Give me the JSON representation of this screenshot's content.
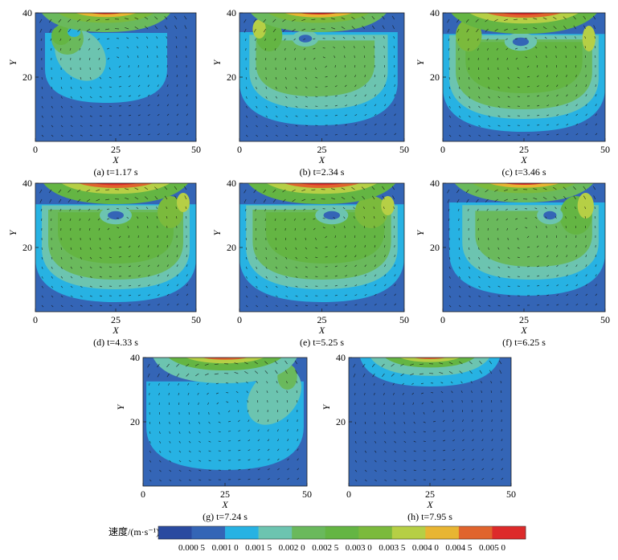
{
  "chart_data": [
    {
      "type": "heatmap+vector",
      "panel": "a",
      "caption": "(a) t=1.17 s",
      "time_s": 1.17,
      "xlabel": "X",
      "ylabel": "Y",
      "xlim": [
        0,
        50
      ],
      "ylim": [
        0,
        40
      ],
      "xticks": [
        0,
        25,
        50
      ],
      "yticks": [
        20,
        40
      ],
      "regions": [
        {
          "value": 0.0005,
          "shape": "base",
          "cx": 25,
          "cy": 20
        },
        {
          "value": 0.001,
          "shape": "bowl",
          "cx": 22,
          "cy": 27,
          "rx": 19,
          "ry": 15
        },
        {
          "value": 0.0015,
          "shape": "plume",
          "cx": 14,
          "cy": 27,
          "rx": 7,
          "ry": 9,
          "rot": -42
        },
        {
          "value": 0.002,
          "shape": "blob",
          "cx": 10,
          "cy": 32,
          "rx": 5,
          "ry": 5
        },
        {
          "value": 0.0025,
          "shape": "blob",
          "cx": 8,
          "cy": 33,
          "rx": 3,
          "ry": 3
        },
        {
          "value": 0.001,
          "shape": "core",
          "cx": 12,
          "cy": 34,
          "rx": 2,
          "ry": 1.5
        },
        {
          "value": 0.002,
          "shape": "lid",
          "cx": 22,
          "cy": 38,
          "rx": 22,
          "ry": 4
        },
        {
          "value": 0.003,
          "shape": "lid",
          "cx": 22,
          "cy": 39.3,
          "rx": 19,
          "ry": 2.4
        },
        {
          "value": 0.004,
          "shape": "lid",
          "cx": 22,
          "cy": 39.9,
          "rx": 15,
          "ry": 1.2
        },
        {
          "value": 0.005,
          "shape": "lid",
          "cx": 22,
          "cy": 40.2,
          "rx": 11,
          "ry": 0.6
        }
      ]
    },
    {
      "type": "heatmap+vector",
      "panel": "b",
      "caption": "(b) t=2.34 s",
      "time_s": 2.34,
      "xlabel": "X",
      "ylabel": "Y",
      "xlim": [
        0,
        50
      ],
      "ylim": [
        0,
        40
      ],
      "xticks": [
        0,
        25,
        50
      ],
      "yticks": [
        20,
        40
      ],
      "regions": [
        {
          "value": 0.0005,
          "shape": "base",
          "cx": 25,
          "cy": 20
        },
        {
          "value": 0.001,
          "shape": "bowl",
          "cx": 24,
          "cy": 25,
          "rx": 24,
          "ry": 20
        },
        {
          "value": 0.0015,
          "shape": "bowl",
          "cx": 24,
          "cy": 26,
          "rx": 21,
          "ry": 16
        },
        {
          "value": 0.002,
          "shape": "bowl",
          "cx": 23,
          "cy": 26,
          "rx": 18,
          "ry": 12
        },
        {
          "value": 0.0025,
          "shape": "blob",
          "cx": 9,
          "cy": 33,
          "rx": 4,
          "ry": 5
        },
        {
          "value": 0.0035,
          "shape": "blob",
          "cx": 6,
          "cy": 35,
          "rx": 2,
          "ry": 3
        },
        {
          "value": 0.0015,
          "shape": "core",
          "cx": 20,
          "cy": 32,
          "rx": 4,
          "ry": 2.5
        },
        {
          "value": 0.0005,
          "shape": "core",
          "cx": 20,
          "cy": 32,
          "rx": 2,
          "ry": 1.2
        },
        {
          "value": 0.002,
          "shape": "lid",
          "cx": 24,
          "cy": 38,
          "rx": 23,
          "ry": 4
        },
        {
          "value": 0.003,
          "shape": "lid",
          "cx": 24,
          "cy": 39.3,
          "rx": 20,
          "ry": 2.4
        },
        {
          "value": 0.004,
          "shape": "lid",
          "cx": 24,
          "cy": 39.9,
          "rx": 17,
          "ry": 1.3
        },
        {
          "value": 0.005,
          "shape": "lid",
          "cx": 24,
          "cy": 40.2,
          "rx": 13,
          "ry": 0.7
        }
      ]
    },
    {
      "type": "heatmap+vector",
      "panel": "c",
      "caption": "(c) t=3.46 s",
      "time_s": 3.46,
      "xlabel": "X",
      "ylabel": "Y",
      "xlim": [
        0,
        50
      ],
      "ylim": [
        0,
        40
      ],
      "xticks": [
        0,
        25,
        50
      ],
      "yticks": [
        20,
        40
      ],
      "regions": [
        {
          "value": 0.0005,
          "shape": "base",
          "cx": 25,
          "cy": 20
        },
        {
          "value": 0.001,
          "shape": "bowl",
          "cx": 25,
          "cy": 24,
          "rx": 25,
          "ry": 21
        },
        {
          "value": 0.0015,
          "shape": "bowl",
          "cx": 25,
          "cy": 25,
          "rx": 23,
          "ry": 18
        },
        {
          "value": 0.002,
          "shape": "bowl",
          "cx": 25,
          "cy": 25,
          "rx": 21,
          "ry": 15
        },
        {
          "value": 0.0025,
          "shape": "bowl",
          "cx": 25,
          "cy": 26,
          "rx": 18,
          "ry": 11
        },
        {
          "value": 0.003,
          "shape": "blob",
          "cx": 8,
          "cy": 33,
          "rx": 4,
          "ry": 5
        },
        {
          "value": 0.0035,
          "shape": "blob",
          "cx": 45,
          "cy": 32,
          "rx": 2,
          "ry": 4
        },
        {
          "value": 0.0015,
          "shape": "core",
          "cx": 24,
          "cy": 31,
          "rx": 5,
          "ry": 2.8
        },
        {
          "value": 0.0005,
          "shape": "core",
          "cx": 24,
          "cy": 31,
          "rx": 2.5,
          "ry": 1.3
        },
        {
          "value": 0.0025,
          "shape": "lid",
          "cx": 25,
          "cy": 38,
          "rx": 25,
          "ry": 4.5
        },
        {
          "value": 0.0035,
          "shape": "lid",
          "cx": 25,
          "cy": 39.3,
          "rx": 22,
          "ry": 2.6
        },
        {
          "value": 0.0045,
          "shape": "lid",
          "cx": 25,
          "cy": 39.9,
          "rx": 19,
          "ry": 1.4
        },
        {
          "value": 0.005,
          "shape": "lid",
          "cx": 25,
          "cy": 40.2,
          "rx": 15,
          "ry": 0.8
        }
      ]
    },
    {
      "type": "heatmap+vector",
      "panel": "d",
      "caption": "(d) t=4.33 s",
      "time_s": 4.33,
      "xlabel": "X",
      "ylabel": "Y",
      "xlim": [
        0,
        50
      ],
      "ylim": [
        0,
        40
      ],
      "xticks": [
        0,
        25,
        50
      ],
      "yticks": [
        20,
        40
      ],
      "regions": [
        {
          "value": 0.0005,
          "shape": "base",
          "cx": 25,
          "cy": 20
        },
        {
          "value": 0.001,
          "shape": "bowl",
          "cx": 25,
          "cy": 24,
          "rx": 25,
          "ry": 21
        },
        {
          "value": 0.0015,
          "shape": "bowl",
          "cx": 25,
          "cy": 25,
          "rx": 23,
          "ry": 18
        },
        {
          "value": 0.002,
          "shape": "bowl",
          "cx": 25,
          "cy": 25,
          "rx": 21,
          "ry": 15
        },
        {
          "value": 0.0025,
          "shape": "bowl",
          "cx": 25,
          "cy": 26,
          "rx": 18,
          "ry": 11
        },
        {
          "value": 0.003,
          "shape": "blob",
          "cx": 42,
          "cy": 31,
          "rx": 4,
          "ry": 5
        },
        {
          "value": 0.0035,
          "shape": "blob",
          "cx": 46,
          "cy": 34,
          "rx": 2,
          "ry": 3
        },
        {
          "value": 0.0015,
          "shape": "core",
          "cx": 25,
          "cy": 30,
          "rx": 5,
          "ry": 2.8
        },
        {
          "value": 0.0005,
          "shape": "core",
          "cx": 25,
          "cy": 30,
          "rx": 2.5,
          "ry": 1.3
        },
        {
          "value": 0.0025,
          "shape": "lid",
          "cx": 25,
          "cy": 38,
          "rx": 25,
          "ry": 4.5
        },
        {
          "value": 0.0035,
          "shape": "lid",
          "cx": 25,
          "cy": 39.3,
          "rx": 22,
          "ry": 2.6
        },
        {
          "value": 0.0045,
          "shape": "lid",
          "cx": 25,
          "cy": 39.9,
          "rx": 19,
          "ry": 1.4
        },
        {
          "value": 0.005,
          "shape": "lid",
          "cx": 25,
          "cy": 40.2,
          "rx": 15,
          "ry": 0.8
        }
      ]
    },
    {
      "type": "heatmap+vector",
      "panel": "e",
      "caption": "(e) t=5.25 s",
      "time_s": 5.25,
      "xlabel": "X",
      "ylabel": "Y",
      "xlim": [
        0,
        50
      ],
      "ylim": [
        0,
        40
      ],
      "xticks": [
        0,
        25,
        50
      ],
      "yticks": [
        20,
        40
      ],
      "regions": [
        {
          "value": 0.0005,
          "shape": "base",
          "cx": 25,
          "cy": 20
        },
        {
          "value": 0.001,
          "shape": "bowl",
          "cx": 25,
          "cy": 24,
          "rx": 25,
          "ry": 21
        },
        {
          "value": 0.0015,
          "shape": "bowl",
          "cx": 25,
          "cy": 25,
          "rx": 23,
          "ry": 18
        },
        {
          "value": 0.002,
          "shape": "bowl",
          "cx": 25,
          "cy": 25,
          "rx": 21,
          "ry": 15
        },
        {
          "value": 0.0025,
          "shape": "bowl",
          "cx": 26,
          "cy": 26,
          "rx": 18,
          "ry": 11
        },
        {
          "value": 0.003,
          "shape": "blob",
          "cx": 40,
          "cy": 31,
          "rx": 5,
          "ry": 5
        },
        {
          "value": 0.0035,
          "shape": "blob",
          "cx": 45,
          "cy": 33,
          "rx": 2,
          "ry": 3
        },
        {
          "value": 0.0015,
          "shape": "core",
          "cx": 28,
          "cy": 30,
          "rx": 5,
          "ry": 2.8
        },
        {
          "value": 0.0005,
          "shape": "core",
          "cx": 28,
          "cy": 30,
          "rx": 2.5,
          "ry": 1.3
        },
        {
          "value": 0.0025,
          "shape": "lid",
          "cx": 25,
          "cy": 38,
          "rx": 25,
          "ry": 4.5
        },
        {
          "value": 0.0035,
          "shape": "lid",
          "cx": 25,
          "cy": 39.3,
          "rx": 22,
          "ry": 2.6
        },
        {
          "value": 0.0045,
          "shape": "lid",
          "cx": 25,
          "cy": 39.9,
          "rx": 19,
          "ry": 1.4
        },
        {
          "value": 0.005,
          "shape": "lid",
          "cx": 25,
          "cy": 40.2,
          "rx": 15,
          "ry": 0.8
        }
      ]
    },
    {
      "type": "heatmap+vector",
      "panel": "f",
      "caption": "(f) t=6.25 s",
      "time_s": 6.25,
      "xlabel": "X",
      "ylabel": "Y",
      "xlim": [
        0,
        50
      ],
      "ylim": [
        0,
        40
      ],
      "xticks": [
        0,
        25,
        50
      ],
      "yticks": [
        20,
        40
      ],
      "regions": [
        {
          "value": 0.0005,
          "shape": "base",
          "cx": 25,
          "cy": 20
        },
        {
          "value": 0.001,
          "shape": "bowl",
          "cx": 26,
          "cy": 25,
          "rx": 24,
          "ry": 20
        },
        {
          "value": 0.0015,
          "shape": "bowl",
          "cx": 27,
          "cy": 26,
          "rx": 21,
          "ry": 16
        },
        {
          "value": 0.002,
          "shape": "bowl",
          "cx": 28,
          "cy": 26,
          "rx": 18,
          "ry": 12
        },
        {
          "value": 0.0025,
          "shape": "blob",
          "cx": 41,
          "cy": 30,
          "rx": 5,
          "ry": 6
        },
        {
          "value": 0.0035,
          "shape": "blob",
          "cx": 44,
          "cy": 33,
          "rx": 2.5,
          "ry": 4
        },
        {
          "value": 0.0015,
          "shape": "core",
          "cx": 33,
          "cy": 30,
          "rx": 4,
          "ry": 2.8
        },
        {
          "value": 0.0005,
          "shape": "core",
          "cx": 33,
          "cy": 30,
          "rx": 2,
          "ry": 1.3
        },
        {
          "value": 0.002,
          "shape": "lid",
          "cx": 25,
          "cy": 38,
          "rx": 24,
          "ry": 4
        },
        {
          "value": 0.003,
          "shape": "lid",
          "cx": 25,
          "cy": 39.3,
          "rx": 21,
          "ry": 2.4
        },
        {
          "value": 0.004,
          "shape": "lid",
          "cx": 25,
          "cy": 39.9,
          "rx": 18,
          "ry": 1.3
        },
        {
          "value": 0.005,
          "shape": "lid",
          "cx": 25,
          "cy": 40.2,
          "rx": 14,
          "ry": 0.7
        }
      ]
    },
    {
      "type": "heatmap+vector",
      "panel": "g",
      "caption": "(g) t=7.24 s",
      "time_s": 7.24,
      "xlabel": "X",
      "ylabel": "Y",
      "xlim": [
        0,
        50
      ],
      "ylim": [
        0,
        40
      ],
      "xticks": [
        0,
        25,
        50
      ],
      "yticks": [
        20,
        40
      ],
      "regions": [
        {
          "value": 0.0005,
          "shape": "base",
          "cx": 25,
          "cy": 20
        },
        {
          "value": 0.001,
          "shape": "bowl",
          "cx": 25,
          "cy": 24,
          "rx": 24,
          "ry": 19
        },
        {
          "value": 0.0015,
          "shape": "plume",
          "cx": 40,
          "cy": 28,
          "rx": 7,
          "ry": 10,
          "rot": 40
        },
        {
          "value": 0.002,
          "shape": "blob",
          "cx": 44,
          "cy": 34,
          "rx": 3,
          "ry": 4
        },
        {
          "value": 0.0015,
          "shape": "lid",
          "cx": 25,
          "cy": 37,
          "rx": 23,
          "ry": 5
        },
        {
          "value": 0.0025,
          "shape": "lid",
          "cx": 25,
          "cy": 39,
          "rx": 21,
          "ry": 3
        },
        {
          "value": 0.0035,
          "shape": "lid",
          "cx": 25,
          "cy": 39.8,
          "rx": 18,
          "ry": 1.6
        },
        {
          "value": 0.0045,
          "shape": "lid",
          "cx": 25,
          "cy": 40.1,
          "rx": 14,
          "ry": 0.8
        },
        {
          "value": 0.005,
          "shape": "lid",
          "cx": 24,
          "cy": 40.3,
          "rx": 10,
          "ry": 0.5
        }
      ]
    },
    {
      "type": "heatmap+vector",
      "panel": "h",
      "caption": "(h) t=7.95 s",
      "time_s": 7.95,
      "xlabel": "X",
      "ylabel": "Y",
      "xlim": [
        0,
        50
      ],
      "ylim": [
        0,
        40
      ],
      "xticks": [
        0,
        25,
        50
      ],
      "yticks": [
        20,
        40
      ],
      "regions": [
        {
          "value": 0.0005,
          "shape": "base",
          "cx": 25,
          "cy": 20
        },
        {
          "value": 0.001,
          "shape": "lid",
          "cx": 25,
          "cy": 37,
          "rx": 22,
          "ry": 6
        },
        {
          "value": 0.0015,
          "shape": "lid",
          "cx": 25,
          "cy": 38.3,
          "rx": 20,
          "ry": 4
        },
        {
          "value": 0.0025,
          "shape": "lid",
          "cx": 25,
          "cy": 39.3,
          "rx": 17,
          "ry": 2.4
        },
        {
          "value": 0.0035,
          "shape": "lid",
          "cx": 25,
          "cy": 39.9,
          "rx": 14,
          "ry": 1.3
        },
        {
          "value": 0.0045,
          "shape": "lid",
          "cx": 25,
          "cy": 40.2,
          "rx": 10,
          "ry": 0.7
        },
        {
          "value": 0.005,
          "shape": "lid",
          "cx": 25,
          "cy": 40.4,
          "rx": 6,
          "ry": 0.4
        }
      ]
    }
  ],
  "legend": {
    "label": "速度/(m·s⁻¹)",
    "levels": [
      0.0005,
      0.001,
      0.0015,
      0.002,
      0.0025,
      0.003,
      0.0035,
      0.004,
      0.0045,
      0.005
    ],
    "tick_labels": [
      "0.000 5",
      "0.001 0",
      "0.001 5",
      "0.002 0",
      "0.002 5",
      "0.003 0",
      "0.003 5",
      "0.004 0",
      "0.004 5",
      "0.005 0"
    ],
    "colors": [
      "#2a4aa0",
      "#3465b6",
      "#27b2e3",
      "#6cc4b0",
      "#6ab95c",
      "#64b543",
      "#7bba3c",
      "#b6cf45",
      "#e8b532",
      "#e0642d",
      "#dd2a2a"
    ]
  }
}
